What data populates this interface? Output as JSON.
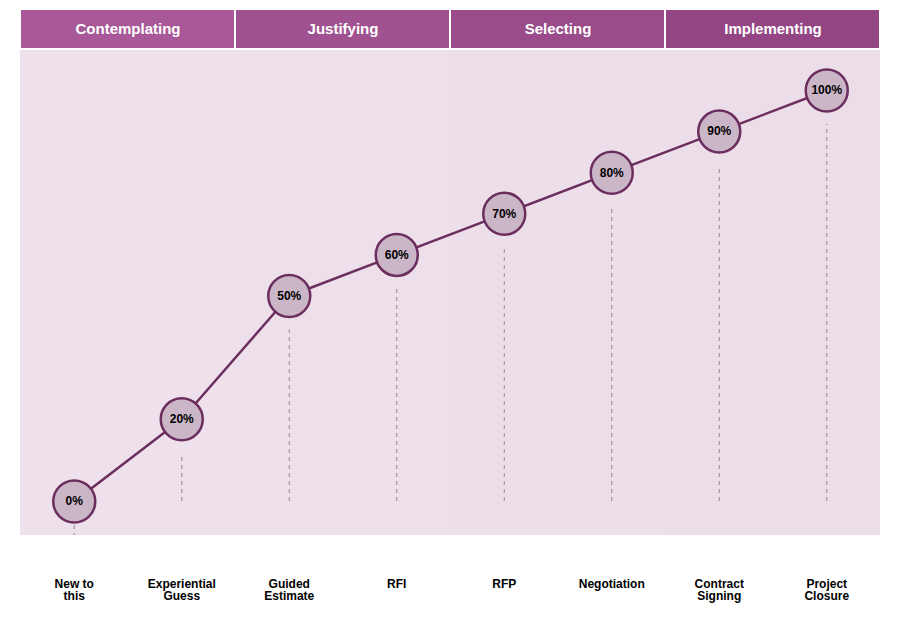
{
  "chart_data": {
    "type": "line",
    "categories": [
      "New to\nthis",
      "Experiential\nGuess",
      "Guided\nEstimate",
      "RFI",
      "RFP",
      "Negotiation",
      "Contract\nSigning",
      "Project\nClosure"
    ],
    "values": [
      0,
      20,
      50,
      60,
      70,
      80,
      90,
      100
    ],
    "value_labels": [
      "0%",
      "20%",
      "50%",
      "60%",
      "70%",
      "80%",
      "90%",
      "100%"
    ],
    "data_labels": true,
    "color": "#6B2E5E",
    "marker": "circle",
    "ylim": [
      0,
      100
    ],
    "tick_labels": "x",
    "annotations": [
      {
        "text": "Contemplating",
        "categories": [
          "New to\nthis",
          "Experiential\nGuess"
        ],
        "color": "#A85898"
      },
      {
        "text": "Justifying",
        "categories": [
          "Guided\nEstimate",
          "RFI"
        ],
        "color": "#A05290"
      },
      {
        "text": "Selecting",
        "categories": [
          "RFP",
          "Negotiation"
        ],
        "color": "#9A4C8A"
      },
      {
        "text": "Implementing",
        "categories": [
          "Contract\nSigning",
          "Project\nClosure"
        ],
        "color": "#944684"
      }
    ]
  }
}
